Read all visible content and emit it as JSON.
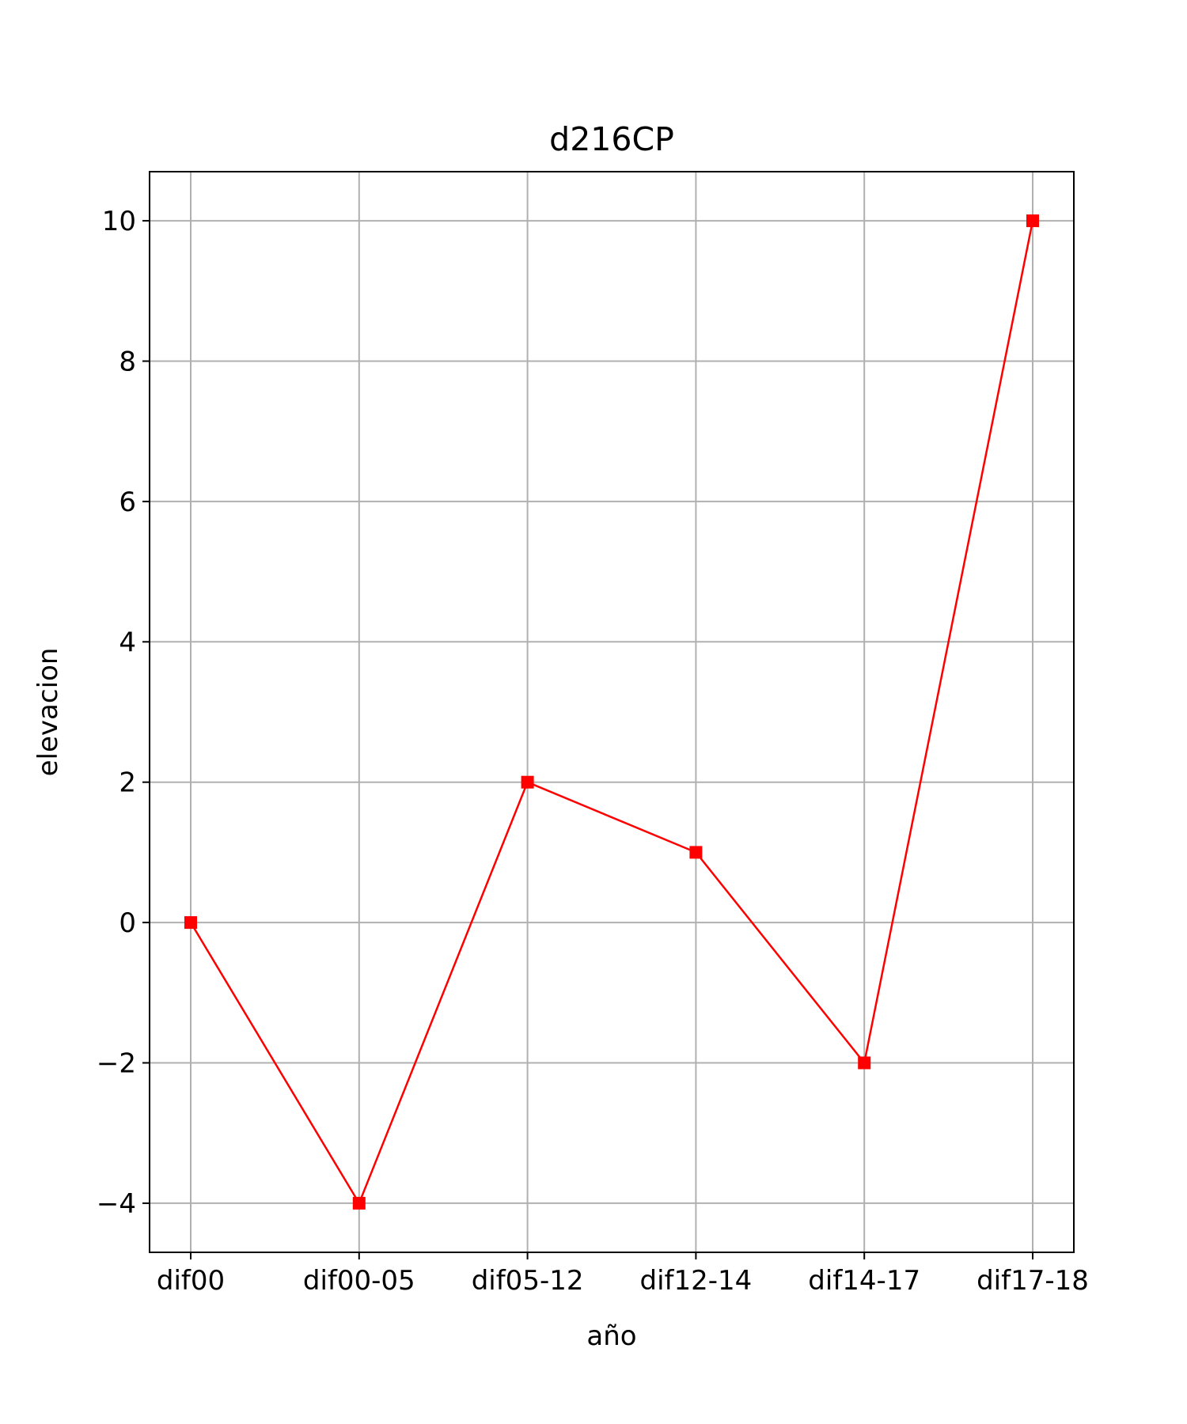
{
  "chart_data": {
    "type": "line",
    "title": "d216CP",
    "xlabel": "año",
    "ylabel": "elevacion",
    "categories": [
      "dif00",
      "dif00-05",
      "dif05-12",
      "dif12-14",
      "dif14-17",
      "dif17-18"
    ],
    "series": [
      {
        "values": [
          0,
          -4,
          2,
          1,
          -2,
          10
        ],
        "color": "#ff0000",
        "marker": "square"
      }
    ],
    "yticks": [
      -4,
      -2,
      0,
      2,
      4,
      6,
      8,
      10
    ],
    "ytick_labels": [
      "−4",
      "−2",
      "0",
      "2",
      "4",
      "6",
      "8",
      "10"
    ],
    "ylim": [
      -4.7,
      10.7
    ],
    "grid": true,
    "colors": {
      "line": "#ff0000",
      "grid": "#b0b0b0",
      "frame": "#000000"
    }
  }
}
